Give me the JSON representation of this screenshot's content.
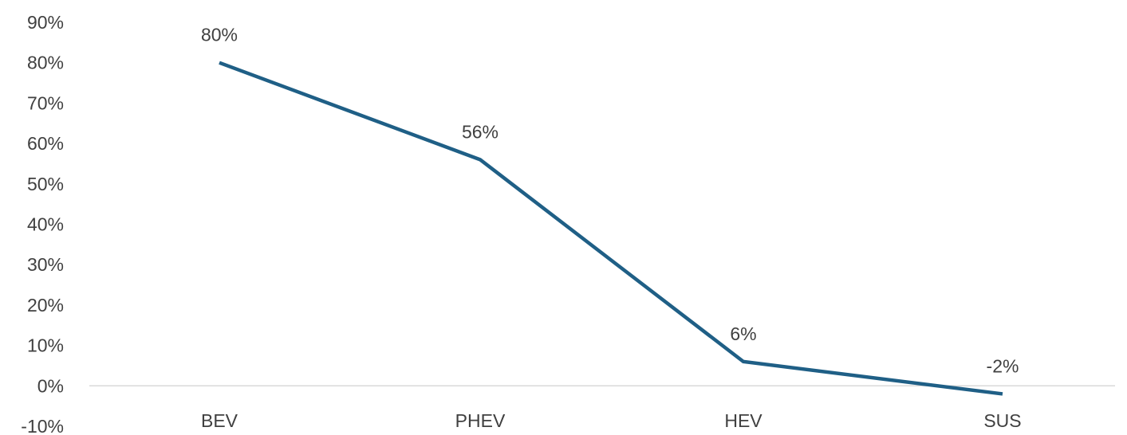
{
  "colors": {
    "series_line": "#1f5f86",
    "zero_axis": "#d9d9d9",
    "text": "#404040",
    "background": "#ffffff"
  },
  "chart_data": {
    "type": "line",
    "title": "",
    "xlabel": "",
    "ylabel": "",
    "categories": [
      "BEV",
      "PHEV",
      "HEV",
      "SUS"
    ],
    "series": [
      {
        "values": [
          80,
          56,
          6,
          -2
        ],
        "data_labels": [
          "80%",
          "56%",
          "6%",
          "-2%"
        ]
      }
    ],
    "y_axis": {
      "ylim": [
        -10,
        90
      ],
      "ticks": [
        90,
        80,
        70,
        60,
        50,
        40,
        30,
        20,
        10,
        0,
        -10
      ],
      "tick_labels": [
        "90%",
        "80%",
        "70%",
        "60%",
        "50%",
        "40%",
        "30%",
        "20%",
        "10%",
        "0%",
        "-10%"
      ]
    },
    "grid": false,
    "legend": "none"
  }
}
